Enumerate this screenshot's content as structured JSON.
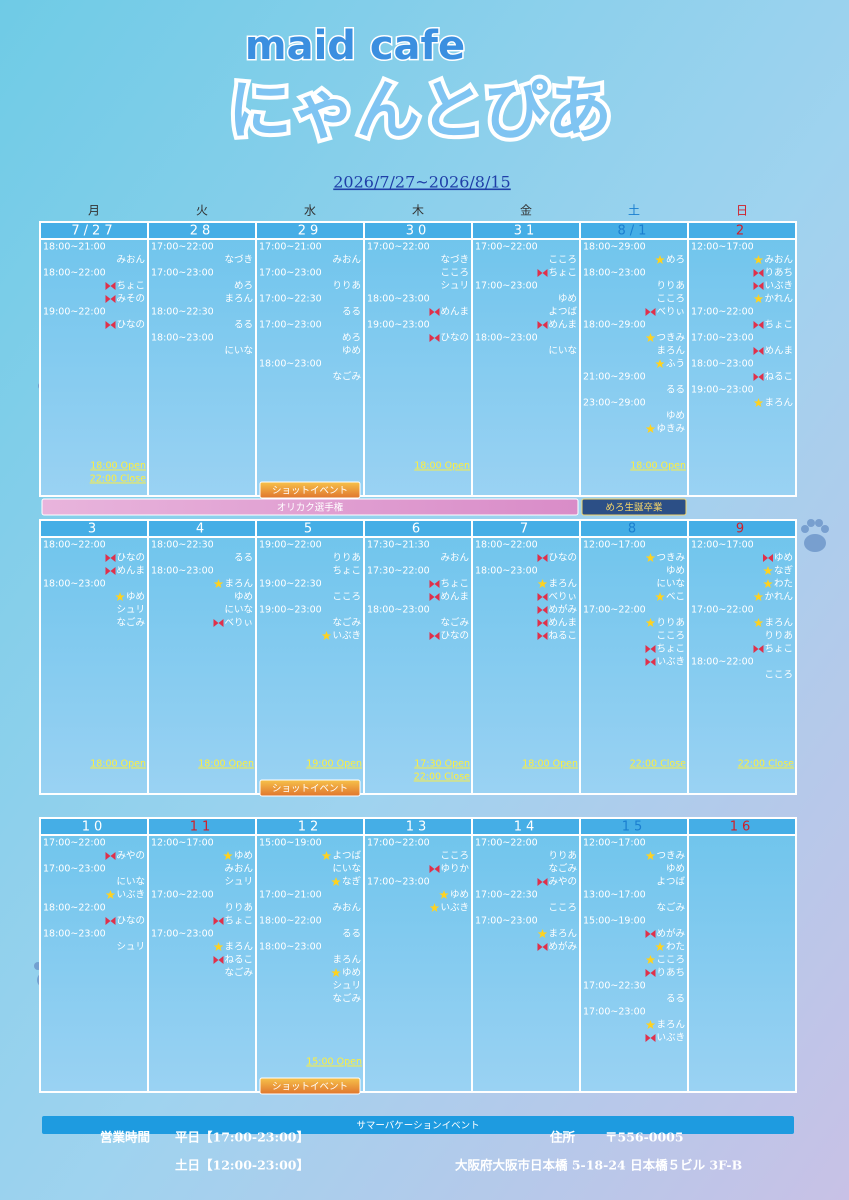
{
  "header": {
    "brand": "maid cafe",
    "logo": "にゃんとぴあ",
    "period": "2026/7/27~2026/8/15"
  },
  "weekdays": [
    {
      "label": "月",
      "color": "#333"
    },
    {
      "label": "火",
      "color": "#333"
    },
    {
      "label": "水",
      "color": "#333"
    },
    {
      "label": "木",
      "color": "#333"
    },
    {
      "label": "金",
      "color": "#333"
    },
    {
      "label": "土",
      "color": "#1a7fd0"
    },
    {
      "label": "日",
      "color": "#d0202a"
    }
  ],
  "weeks": [
    {
      "days": [
        {
          "date": "7/27",
          "rows": [
            {
              "time": "18:00~21:00"
            },
            {
              "name": "みおん"
            },
            {
              "time": "18:00~22:00"
            },
            {
              "name": "ちょこ",
              "mark": "ribbon"
            },
            {
              "name": "みその",
              "mark": "ribbon"
            },
            {
              "time": "19:00~22:00"
            },
            {
              "name": "ひなの",
              "mark": "ribbon"
            }
          ],
          "notes": [
            "18:00 Open",
            "22:00 Close"
          ]
        },
        {
          "date": "28",
          "rows": [
            {
              "time": "17:00~22:00"
            },
            {
              "name": "なづき"
            },
            {
              "time": "17:00~23:00"
            },
            {
              "name": "めろ"
            },
            {
              "name": "まろん"
            },
            {
              "time": "18:00~22:30"
            },
            {
              "name": "るる"
            },
            {
              "time": "18:00~23:00"
            },
            {
              "name": "にいな"
            }
          ],
          "notes": []
        },
        {
          "date": "29",
          "rows": [
            {
              "time": "17:00~21:00"
            },
            {
              "name": "みおん"
            },
            {
              "time": "17:00~23:00"
            },
            {
              "name": "りりあ"
            },
            {
              "time": "17:00~22:30"
            },
            {
              "name": "るる"
            },
            {
              "time": "17:00~23:00"
            },
            {
              "name": "めろ"
            },
            {
              "name": "ゆめ"
            },
            {
              "time": "18:00~23:00"
            },
            {
              "name": "なごみ"
            }
          ],
          "notes": []
        },
        {
          "date": "30",
          "rows": [
            {
              "time": "17:00~22:00"
            },
            {
              "name": "なづき"
            },
            {
              "name": "こころ"
            },
            {
              "name": "シュリ"
            },
            {
              "time": "18:00~23:00"
            },
            {
              "name": "めんま",
              "mark": "ribbon"
            },
            {
              "time": "19:00~23:00"
            },
            {
              "name": "ひなの",
              "mark": "ribbon"
            }
          ],
          "notes": [
            "18:00 Open"
          ]
        },
        {
          "date": "31",
          "rows": [
            {
              "time": "17:00~22:00"
            },
            {
              "name": "こころ"
            },
            {
              "name": "ちょこ",
              "mark": "ribbon"
            },
            {
              "time": "17:00~23:00"
            },
            {
              "name": "ゆめ"
            },
            {
              "name": "よつば"
            },
            {
              "name": "めんま",
              "mark": "ribbon"
            },
            {
              "time": "18:00~23:00"
            },
            {
              "name": "にいな"
            }
          ],
          "notes": []
        },
        {
          "date": "8/1",
          "color": "#1a7fd0",
          "rows": [
            {
              "time": "18:00~29:00"
            },
            {
              "name": "めろ",
              "mark": "star"
            },
            {
              "time": "18:00~23:00"
            },
            {
              "name": "りりあ"
            },
            {
              "name": "こころ"
            },
            {
              "name": "べりぃ",
              "mark": "ribbon"
            },
            {
              "time": "18:00~29:00"
            },
            {
              "name": "つきみ",
              "mark": "star"
            },
            {
              "name": "まろん"
            },
            {
              "name": "ふう",
              "mark": "star"
            },
            {
              "time": "21:00~29:00"
            },
            {
              "name": "るる"
            },
            {
              "time": "23:00~29:00"
            },
            {
              "name": "ゆめ"
            },
            {
              "name": "ゆきみ",
              "mark": "star"
            }
          ],
          "notes": [
            "18:00 Open"
          ]
        },
        {
          "date": "2",
          "color": "#d0202a",
          "rows": [
            {
              "time": "12:00~17:00"
            },
            {
              "name": "みおん",
              "mark": "star"
            },
            {
              "name": "りあち",
              "mark": "ribbon"
            },
            {
              "name": "いぶき",
              "mark": "ribbon"
            },
            {
              "name": "かれん",
              "mark": "star"
            },
            {
              "time": "17:00~22:00"
            },
            {
              "name": "ちょこ",
              "mark": "ribbon"
            },
            {
              "time": "17:00~23:00"
            },
            {
              "name": "めんま",
              "mark": "ribbon"
            },
            {
              "time": "18:00~23:00"
            },
            {
              "name": "ねるこ",
              "mark": "ribbon"
            },
            {
              "time": "19:00~23:00"
            },
            {
              "name": "まろん",
              "mark": "star"
            }
          ],
          "notes": []
        }
      ],
      "events": [
        {
          "label": "ショットイベント",
          "start": 2,
          "end": 2,
          "style": "shot"
        },
        {
          "label": "オリカク選手権",
          "start": 0,
          "end": 4,
          "style": "pink"
        },
        {
          "label": "めろ生誕卒業",
          "start": 5,
          "end": 5,
          "style": "gold"
        }
      ]
    },
    {
      "days": [
        {
          "date": "3",
          "rows": [
            {
              "time": "18:00~22:00"
            },
            {
              "name": "ひなの",
              "mark": "ribbon"
            },
            {
              "name": "めんま",
              "mark": "ribbon"
            },
            {
              "time": "18:00~23:00"
            },
            {
              "name": "ゆめ",
              "mark": "star"
            },
            {
              "name": "シュリ"
            },
            {
              "name": "なごみ"
            }
          ],
          "notes": [
            "18:00 Open"
          ]
        },
        {
          "date": "4",
          "rows": [
            {
              "time": "18:00~22:30"
            },
            {
              "name": "るる"
            },
            {
              "time": "18:00~23:00"
            },
            {
              "name": "まろん",
              "mark": "star"
            },
            {
              "name": "ゆめ"
            },
            {
              "name": "にいな"
            },
            {
              "name": "べりぃ",
              "mark": "ribbon"
            }
          ],
          "notes": [
            "18:00 Open"
          ]
        },
        {
          "date": "5",
          "rows": [
            {
              "time": "19:00~22:00"
            },
            {
              "name": "りりあ"
            },
            {
              "name": "ちょこ"
            },
            {
              "time": "19:00~22:30"
            },
            {
              "name": "こころ"
            },
            {
              "time": "19:00~23:00"
            },
            {
              "name": "なごみ"
            },
            {
              "name": "いぶき",
              "mark": "star"
            }
          ],
          "notes": [
            "19:00 Open"
          ]
        },
        {
          "date": "6",
          "rows": [
            {
              "time": "17:30~21:30"
            },
            {
              "name": "みおん"
            },
            {
              "time": "17:30~22:00"
            },
            {
              "name": "ちょこ",
              "mark": "ribbon"
            },
            {
              "name": "めんま",
              "mark": "ribbon"
            },
            {
              "time": "18:00~23:00"
            },
            {
              "name": "なごみ"
            },
            {
              "name": "ひなの",
              "mark": "ribbon"
            }
          ],
          "notes": [
            "17:30 Open",
            "22:00 Close"
          ]
        },
        {
          "date": "7",
          "rows": [
            {
              "time": "18:00~22:00"
            },
            {
              "name": "ひなの",
              "mark": "ribbon"
            },
            {
              "time": "18:00~23:00"
            },
            {
              "name": "まろん",
              "mark": "star"
            },
            {
              "name": "べりぃ",
              "mark": "ribbon"
            },
            {
              "name": "めがみ",
              "mark": "ribbon"
            },
            {
              "name": "めんま",
              "mark": "ribbon"
            },
            {
              "name": "ねるこ",
              "mark": "ribbon"
            }
          ],
          "notes": [
            "18:00 Open"
          ]
        },
        {
          "date": "8",
          "color": "#1a7fd0",
          "rows": [
            {
              "time": "12:00~17:00"
            },
            {
              "name": "つきみ",
              "mark": "star"
            },
            {
              "name": "ゆめ"
            },
            {
              "name": "にいな"
            },
            {
              "name": "べこ",
              "mark": "star"
            },
            {
              "time": "17:00~22:00"
            },
            {
              "name": "りりあ",
              "mark": "star"
            },
            {
              "name": "こころ"
            },
            {
              "name": "ちょこ",
              "mark": "ribbon"
            },
            {
              "name": "いぶき",
              "mark": "ribbon"
            }
          ],
          "notes": [
            "22:00 Close"
          ]
        },
        {
          "date": "9",
          "color": "#d0202a",
          "rows": [
            {
              "time": "12:00~17:00"
            },
            {
              "name": "ゆめ",
              "mark": "ribbon"
            },
            {
              "name": "なぎ",
              "mark": "star"
            },
            {
              "name": "わた",
              "mark": "star"
            },
            {
              "name": "かれん",
              "mark": "star"
            },
            {
              "time": "17:00~22:00"
            },
            {
              "name": "まろん",
              "mark": "star"
            },
            {
              "name": "りりあ"
            },
            {
              "name": "ちょこ",
              "mark": "ribbon"
            },
            {
              "time": "18:00~22:00"
            },
            {
              "name": "こころ"
            }
          ],
          "notes": [
            "22:00 Close"
          ]
        }
      ],
      "events": [
        {
          "label": "ショットイベント",
          "start": 2,
          "end": 2,
          "style": "shot"
        }
      ]
    },
    {
      "days": [
        {
          "date": "10",
          "rows": [
            {
              "time": "17:00~22:00"
            },
            {
              "name": "みやの",
              "mark": "ribbon"
            },
            {
              "time": "17:00~23:00"
            },
            {
              "name": "にいな"
            },
            {
              "name": "いぶき",
              "mark": "star"
            },
            {
              "time": "18:00~22:00"
            },
            {
              "name": "ひなの",
              "mark": "ribbon"
            },
            {
              "time": "18:00~23:00"
            },
            {
              "name": "シュリ"
            }
          ],
          "notes": []
        },
        {
          "date": "11",
          "color": "#d0202a",
          "rows": [
            {
              "time": "12:00~17:00"
            },
            {
              "name": "ゆめ",
              "mark": "star"
            },
            {
              "name": "みおん"
            },
            {
              "name": "シュリ"
            },
            {
              "time": "17:00~22:00"
            },
            {
              "name": "りりあ"
            },
            {
              "name": "ちょこ",
              "mark": "ribbon"
            },
            {
              "time": "17:00~23:00"
            },
            {
              "name": "まろん",
              "mark": "star"
            },
            {
              "name": "ねるこ",
              "mark": "ribbon"
            },
            {
              "name": "なごみ"
            }
          ],
          "notes": []
        },
        {
          "date": "12",
          "rows": [
            {
              "time": "15:00~19:00"
            },
            {
              "name": "よつば",
              "mark": "star"
            },
            {
              "name": "にいな"
            },
            {
              "name": "なぎ",
              "mark": "star"
            },
            {
              "time": "17:00~21:00"
            },
            {
              "name": "みおん"
            },
            {
              "time": "18:00~22:00"
            },
            {
              "name": "るる"
            },
            {
              "time": "18:00~23:00"
            },
            {
              "name": "まろん"
            },
            {
              "name": "ゆめ",
              "mark": "star"
            },
            {
              "name": "シュリ"
            },
            {
              "name": "なごみ"
            }
          ],
          "notes": [
            "15:00 Open"
          ]
        },
        {
          "date": "13",
          "rows": [
            {
              "time": "17:00~22:00"
            },
            {
              "name": "こころ"
            },
            {
              "name": "ゆりか",
              "mark": "ribbon"
            },
            {
              "time": "17:00~23:00"
            },
            {
              "name": "ゆめ",
              "mark": "star"
            },
            {
              "name": "いぶき",
              "mark": "star"
            }
          ],
          "notes": []
        },
        {
          "date": "14",
          "rows": [
            {
              "time": "17:00~22:00"
            },
            {
              "name": "りりあ"
            },
            {
              "name": "なごみ"
            },
            {
              "name": "みやの",
              "mark": "ribbon"
            },
            {
              "time": "17:00~22:30"
            },
            {
              "name": "こころ"
            },
            {
              "time": "17:00~23:00"
            },
            {
              "name": "まろん",
              "mark": "star"
            },
            {
              "name": "めがみ",
              "mark": "ribbon"
            }
          ],
          "notes": []
        },
        {
          "date": "15",
          "color": "#1a7fd0",
          "rows": [
            {
              "time": "12:00~17:00"
            },
            {
              "name": "つきみ",
              "mark": "star"
            },
            {
              "name": "ゆめ"
            },
            {
              "name": "よつば"
            },
            {
              "time": "13:00~17:00"
            },
            {
              "name": "なごみ"
            },
            {
              "time": "15:00~19:00"
            },
            {
              "name": "めがみ",
              "mark": "ribbon"
            },
            {
              "name": "わた",
              "mark": "star"
            },
            {
              "name": "こころ",
              "mark": "star"
            },
            {
              "name": "りあち",
              "mark": "ribbon"
            },
            {
              "time": "17:00~22:30"
            },
            {
              "name": "るる"
            },
            {
              "time": "17:00~23:00"
            },
            {
              "name": "まろん",
              "mark": "star"
            },
            {
              "name": "いぶき",
              "mark": "ribbon"
            }
          ],
          "notes": []
        },
        {
          "date": "16",
          "color": "#d0202a",
          "rows": [],
          "notes": []
        }
      ],
      "events": [
        {
          "label": "ショットイベント",
          "start": 2,
          "end": 2,
          "style": "shot"
        },
        {
          "label": "サマーバケーションイベント",
          "start": 0,
          "end": 6,
          "style": "blue"
        }
      ]
    }
  ],
  "footer": {
    "hours_label": "営業時間",
    "weekday_hours": "平日【17:00-23:00】",
    "weekend_hours": "土日【12:00-23:00】",
    "address_label": "住所",
    "postal": "〒556-0005",
    "address": "大阪府大阪市日本橋 5-18-24 日本橋５ビル 3F-B"
  }
}
